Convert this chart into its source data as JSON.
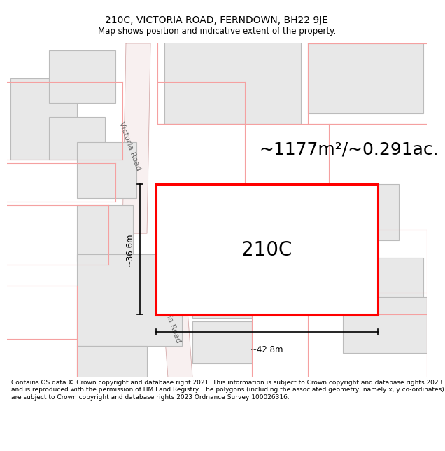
{
  "title_line1": "210C, VICTORIA ROAD, FERNDOWN, BH22 9JE",
  "title_line2": "Map shows position and indicative extent of the property.",
  "footer_text": "Contains OS data © Crown copyright and database right 2021. This information is subject to Crown copyright and database rights 2023 and is reproduced with the permission of HM Land Registry. The polygons (including the associated geometry, namely x, y co-ordinates) are subject to Crown copyright and database rights 2023 Ordnance Survey 100026316.",
  "area_label": "~1177m²/~0.291ac.",
  "property_label": "210C",
  "width_label": "~42.8m",
  "height_label": "~36.6m",
  "road_label_top": "Victoria Road",
  "road_label_bottom": "Victoria Road",
  "map_bg": "#ffffff",
  "building_fill": "#e8e8e8",
  "building_edge": "#bbbbbb",
  "lot_line_color": "#f5a0a0",
  "road_line_color": "#d0a0a0",
  "property_color": "#ff0000",
  "dim_color": "#000000",
  "title_fontsize": 10,
  "subtitle_fontsize": 8.5,
  "area_fontsize": 18,
  "label_fontsize": 20,
  "road_fontsize": 8,
  "dim_fontsize": 8.5,
  "footer_fontsize": 6.5
}
